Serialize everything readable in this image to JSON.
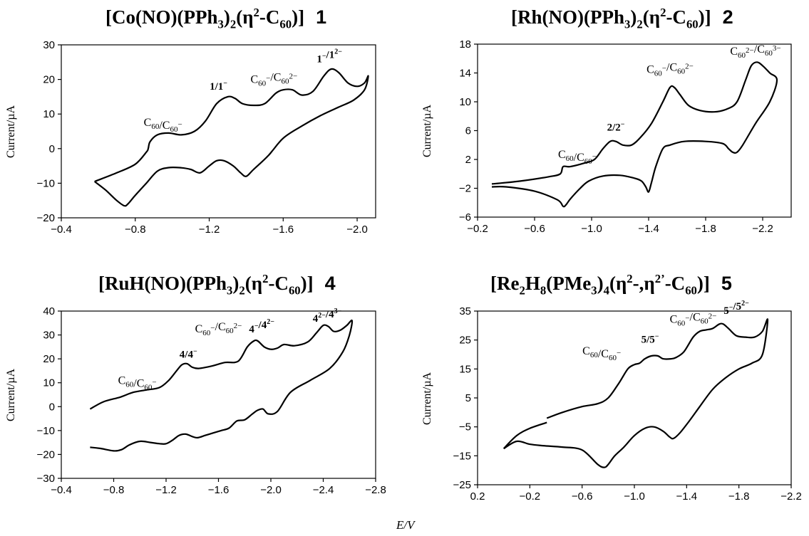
{
  "x_axis_label": "E/V",
  "chart_data": [
    {
      "type": "line",
      "title": "[Co(NO)(PPh3)2(η2-C60)]  1",
      "ylabel": "Current/µA",
      "xlim": [
        -0.4,
        -2.1
      ],
      "ylim": [
        -20,
        30
      ],
      "xticks": [
        "-0.4",
        "-0.8",
        "-1.2",
        "-1.6",
        "-2.0"
      ],
      "yticks": [
        "30",
        "20",
        "10",
        "0",
        "-10",
        "-20"
      ],
      "annotations": [
        {
          "text": "C60/C60−",
          "x": -0.95,
          "y": 6.5
        },
        {
          "text": "1/1−",
          "x": -1.25,
          "y": 17
        },
        {
          "text": "C60−/C602−",
          "x": -1.55,
          "y": 19
        },
        {
          "text": "1−/12−",
          "x": -1.85,
          "y": 25
        }
      ],
      "series": [
        {
          "x": [
            -0.58,
            -0.7,
            -0.8,
            -0.86,
            -0.87,
            -0.88,
            -0.92,
            -0.98,
            -1.05,
            -1.12,
            -1.18,
            -1.24,
            -1.3,
            -1.34,
            -1.38,
            -1.44,
            -1.5,
            -1.56,
            -1.6,
            -1.65,
            -1.7,
            -1.76,
            -1.82,
            -1.86,
            -1.9,
            -1.95,
            -2.0,
            -2.04,
            -2.06,
            -2.04,
            -1.98,
            -1.9,
            -1.8,
            -1.7,
            -1.6,
            -1.52,
            -1.44,
            -1.4,
            -1.37,
            -1.33,
            -1.28,
            -1.24,
            -1.2,
            -1.15,
            -1.1,
            -1.04,
            -0.98,
            -0.92,
            -0.86,
            -0.8,
            -0.76,
            -0.74,
            -0.7,
            -0.64,
            -0.58
          ],
          "y": [
            -9.5,
            -7,
            -4.5,
            -1,
            0,
            2,
            4,
            4.5,
            4,
            5,
            8,
            13,
            15,
            14.5,
            13,
            12.5,
            13,
            16,
            17,
            17,
            15.5,
            16.5,
            21,
            23,
            22,
            19,
            18,
            19,
            21,
            17,
            14,
            12,
            9.5,
            6.5,
            3,
            -2,
            -6,
            -8,
            -7,
            -5,
            -3.5,
            -3.5,
            -5,
            -7,
            -6,
            -5.5,
            -5.5,
            -6.5,
            -10,
            -13.5,
            -16,
            -16.5,
            -15,
            -12,
            -9.5
          ]
        }
      ]
    },
    {
      "type": "line",
      "title": "[Rh(NO)(PPh3)2(η2-C60)]  2",
      "ylabel": "Current/µA",
      "xlim": [
        -0.2,
        -2.4
      ],
      "ylim": [
        -6,
        18
      ],
      "xticks": [
        "-0.2",
        "-0.6",
        "-1.0",
        "-1.4",
        "-1.8",
        "-2.2"
      ],
      "yticks": [
        "18",
        "14",
        "10",
        "6",
        "2",
        "-2",
        "-6"
      ],
      "annotations": [
        {
          "text": "C60/C60−",
          "x": -0.9,
          "y": 2.2
        },
        {
          "text": "2/2−",
          "x": -1.17,
          "y": 6
        },
        {
          "text": "C60−/C602−",
          "x": -1.55,
          "y": 14
        },
        {
          "text": "C602−/C603−",
          "x": -2.15,
          "y": 16.5
        }
      ],
      "series": [
        {
          "x": [
            -0.3,
            -0.5,
            -0.7,
            -0.78,
            -0.8,
            -0.85,
            -0.95,
            -1.02,
            -1.08,
            -1.13,
            -1.17,
            -1.22,
            -1.28,
            -1.34,
            -1.42,
            -1.5,
            -1.55,
            -1.58,
            -1.62,
            -1.68,
            -1.76,
            -1.86,
            -1.95,
            -2.02,
            -2.08,
            -2.12,
            -2.16,
            -2.2,
            -2.25,
            -2.3,
            -2.25,
            -2.15,
            -2.06,
            -2.02,
            -1.99,
            -1.96,
            -1.92,
            -1.8,
            -1.65,
            -1.55,
            -1.5,
            -1.45,
            -1.42,
            -1.4,
            -1.38,
            -1.35,
            -1.3,
            -1.2,
            -1.08,
            -0.98,
            -0.92,
            -0.85,
            -0.82,
            -0.8,
            -0.76,
            -0.6,
            -0.4,
            -0.3
          ],
          "y": [
            -1.4,
            -1,
            -0.4,
            0,
            1,
            1,
            1.5,
            2,
            3.5,
            4.5,
            4.5,
            4,
            4,
            5,
            7,
            10,
            12,
            12,
            11,
            9.5,
            8.8,
            8.6,
            9,
            10,
            13,
            15,
            15.5,
            15,
            14,
            13,
            10,
            7,
            4,
            3,
            3,
            3.5,
            4.2,
            4.5,
            4.5,
            4,
            3.5,
            1,
            -1.2,
            -2.5,
            -1.8,
            -1,
            -0.6,
            -0.2,
            -0.3,
            -1,
            -2,
            -3.5,
            -4.3,
            -4.5,
            -3.6,
            -2.4,
            -1.8,
            -1.8
          ]
        }
      ]
    },
    {
      "type": "line",
      "title": "[RuH(NO)(PPh3)2(η2-C60)]  4",
      "ylabel": "Current/µA",
      "xlim": [
        -0.4,
        -2.8
      ],
      "ylim": [
        -30,
        40
      ],
      "xticks": [
        "-0.4",
        "-0.8",
        "-1.2",
        "-1.6",
        "-2.0",
        "-2.4",
        "-2.8"
      ],
      "yticks": [
        "40",
        "30",
        "20",
        "10",
        "0",
        "-10",
        "-20",
        "-30"
      ],
      "annotations": [
        {
          "text": "C60/C60−",
          "x": -0.98,
          "y": 9.5
        },
        {
          "text": "4/4−",
          "x": -1.37,
          "y": 20.5
        },
        {
          "text": "C60−/C602−",
          "x": -1.6,
          "y": 31
        },
        {
          "text": "4−/42−",
          "x": -1.93,
          "y": 31
        },
        {
          "text": "42−/43−",
          "x": -2.43,
          "y": 35.5
        }
      ],
      "series": [
        {
          "x": [
            -0.62,
            -0.72,
            -0.85,
            -0.95,
            -1.05,
            -1.15,
            -1.22,
            -1.28,
            -1.32,
            -1.36,
            -1.4,
            -1.45,
            -1.55,
            -1.65,
            -1.75,
            -1.82,
            -1.87,
            -1.9,
            -1.95,
            -2.0,
            -2.05,
            -2.1,
            -2.18,
            -2.28,
            -2.35,
            -2.4,
            -2.44,
            -2.48,
            -2.53,
            -2.58,
            -2.62,
            -2.6,
            -2.55,
            -2.45,
            -2.3,
            -2.15,
            -2.05,
            -1.98,
            -1.94,
            -1.9,
            -1.86,
            -1.8,
            -1.74,
            -1.68,
            -1.62,
            -1.56,
            -1.5,
            -1.44,
            -1.4,
            -1.35,
            -1.3,
            -1.25,
            -1.2,
            -1.15,
            -1.08,
            -1.0,
            -0.92,
            -0.86,
            -0.8,
            -0.7,
            -0.62
          ],
          "y": [
            -1,
            2,
            4,
            6,
            7,
            8,
            11,
            15,
            17.5,
            18,
            16.5,
            16,
            17,
            18.5,
            19,
            25,
            27.5,
            27.5,
            25,
            24,
            24.5,
            26,
            25.5,
            27,
            31,
            34,
            33.5,
            31.5,
            32,
            34,
            36,
            30,
            23,
            16,
            11,
            6,
            -2,
            -3,
            -1,
            -1.5,
            -3,
            -5.5,
            -6,
            -9,
            -10,
            -11,
            -12,
            -13,
            -12.5,
            -11.5,
            -12,
            -14,
            -15.5,
            -15.5,
            -15,
            -14.5,
            -16,
            -18,
            -18.5,
            -17.5,
            -17
          ]
        }
      ]
    },
    {
      "type": "line",
      "title": "[Re2H8(PMe3)4(η2-,η2’-C60)]  5",
      "ylabel": "Current/µA",
      "xlim": [
        0.2,
        -2.2
      ],
      "ylim": [
        -25,
        35
      ],
      "xticks": [
        "0.2",
        "-0.2",
        "-0.6",
        "-1.0",
        "-1.4",
        "-1.8",
        "-2.2"
      ],
      "yticks": [
        "35",
        "25",
        "15",
        "5",
        "-5",
        "-15",
        "-25"
      ],
      "annotations": [
        {
          "text": "C60/C60−",
          "x": -0.75,
          "y": 20
        },
        {
          "text": "5/5−",
          "x": -1.12,
          "y": 24
        },
        {
          "text": "C60−/C602−",
          "x": -1.45,
          "y": 31
        },
        {
          "text": "5−/52−",
          "x": -1.78,
          "y": 34
        }
      ],
      "series": [
        {
          "x": [
            -0.33,
            -0.45,
            -0.6,
            -0.72,
            -0.8,
            -0.88,
            -0.95,
            -1.0,
            -1.04,
            -1.08,
            -1.13,
            -1.18,
            -1.22,
            -1.28,
            -1.32,
            -1.38,
            -1.45,
            -1.5,
            -1.55,
            -1.6,
            -1.65,
            -1.68,
            -1.72,
            -1.78,
            -1.85,
            -1.92,
            -1.98,
            -2.02,
            -1.98,
            -1.9,
            -1.8,
            -1.7,
            -1.6,
            -1.5,
            -1.42,
            -1.35,
            -1.3,
            -1.27,
            -1.22,
            -1.15,
            -1.08,
            -1.0,
            -0.92,
            -0.85,
            -0.8,
            -0.77,
            -0.72,
            -0.6,
            -0.45,
            -0.3,
            -0.2,
            -0.1,
            0.0
          ],
          "y": [
            -2,
            0,
            2,
            3,
            5,
            10,
            15,
            16.5,
            17,
            18.5,
            19.5,
            19.5,
            18.5,
            18.5,
            19,
            21,
            26,
            28,
            28.5,
            29,
            30.5,
            30.5,
            29,
            26.5,
            26,
            26,
            28,
            32,
            20,
            17,
            15,
            12,
            8,
            2,
            -3,
            -7,
            -9,
            -8.5,
            -6.5,
            -5,
            -5.5,
            -8,
            -12,
            -15,
            -18,
            -19,
            -18,
            -13,
            -12,
            -11.5,
            -11,
            -10,
            -12.5
          ]
        },
        {
          "x": [
            0.0,
            -0.1,
            -0.2,
            -0.33
          ],
          "y": [
            -12.5,
            -8,
            -5.5,
            -3.5
          ]
        }
      ]
    }
  ]
}
